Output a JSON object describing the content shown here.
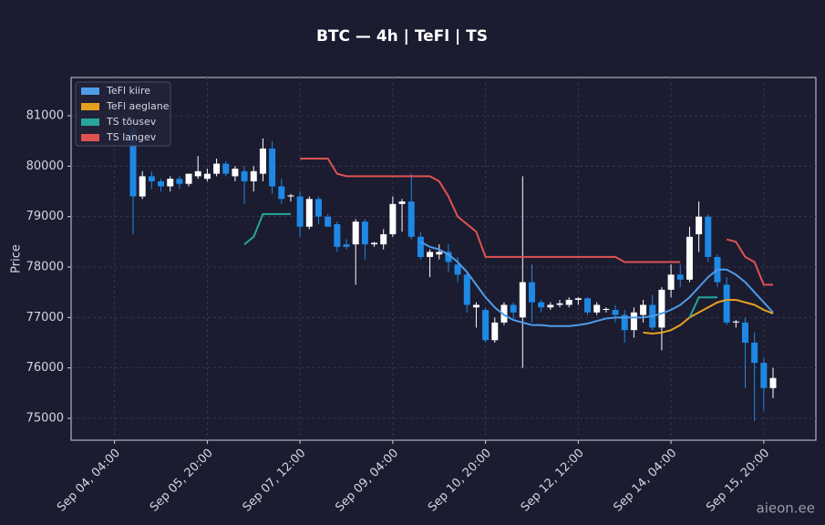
{
  "chart_data": {
    "type": "candlestick",
    "title": "BTC — 4h  |  TeFl  |  TS",
    "y_label": "Price",
    "watermark": "aieon.ee",
    "x": [
      "Sep 04, 12:00",
      "Sep 04, 16:00",
      "Sep 04, 20:00",
      "Sep 05, 00:00",
      "Sep 05, 04:00",
      "Sep 05, 08:00",
      "Sep 05, 12:00",
      "Sep 05, 16:00",
      "Sep 05, 20:00",
      "Sep 06, 00:00",
      "Sep 06, 04:00",
      "Sep 06, 08:00",
      "Sep 06, 12:00",
      "Sep 06, 16:00",
      "Sep 06, 20:00",
      "Sep 07, 00:00",
      "Sep 07, 04:00",
      "Sep 07, 08:00",
      "Sep 07, 12:00",
      "Sep 07, 16:00",
      "Sep 07, 20:00",
      "Sep 08, 00:00",
      "Sep 08, 04:00",
      "Sep 08, 08:00",
      "Sep 08, 12:00",
      "Sep 08, 16:00",
      "Sep 08, 20:00",
      "Sep 09, 00:00",
      "Sep 09, 04:00",
      "Sep 09, 08:00",
      "Sep 09, 12:00",
      "Sep 09, 16:00",
      "Sep 09, 20:00",
      "Sep 10, 00:00",
      "Sep 10, 04:00",
      "Sep 10, 08:00",
      "Sep 10, 12:00",
      "Sep 10, 16:00",
      "Sep 10, 20:00",
      "Sep 11, 00:00",
      "Sep 11, 04:00",
      "Sep 11, 08:00",
      "Sep 11, 12:00",
      "Sep 11, 16:00",
      "Sep 11, 20:00",
      "Sep 12, 00:00",
      "Sep 12, 04:00",
      "Sep 12, 08:00",
      "Sep 12, 12:00",
      "Sep 12, 16:00",
      "Sep 12, 20:00",
      "Sep 13, 00:00",
      "Sep 13, 04:00",
      "Sep 13, 08:00",
      "Sep 13, 12:00",
      "Sep 13, 16:00",
      "Sep 13, 20:00",
      "Sep 14, 00:00",
      "Sep 14, 04:00",
      "Sep 14, 08:00",
      "Sep 14, 12:00",
      "Sep 14, 16:00",
      "Sep 14, 20:00",
      "Sep 15, 00:00",
      "Sep 15, 04:00",
      "Sep 15, 08:00",
      "Sep 15, 12:00",
      "Sep 15, 16:00",
      "Sep 15, 20:00",
      "Sep 16, 00:00"
    ],
    "open": [
      80750,
      79400,
      79800,
      79700,
      79600,
      79750,
      79650,
      79800,
      79750,
      79850,
      80050,
      79800,
      79900,
      79700,
      79850,
      80350,
      79600,
      79400,
      79400,
      78800,
      79350,
      79000,
      78850,
      78450,
      78450,
      78900,
      78450,
      78450,
      78650,
      79250,
      79300,
      78600,
      78200,
      78250,
      78300,
      78050,
      77850,
      77200,
      77150,
      76550,
      76900,
      77250,
      77000,
      77700,
      77300,
      77200,
      77250,
      77250,
      77350,
      77380,
      77100,
      77150,
      77150,
      77050,
      76750,
      77050,
      77250,
      76800,
      77550,
      77850,
      77750,
      78650,
      79000,
      78200,
      77650,
      76900,
      76900,
      76500,
      76100,
      75600
    ],
    "high": [
      80950,
      79900,
      79900,
      79750,
      79800,
      79800,
      79850,
      80200,
      79950,
      80150,
      80100,
      80000,
      80000,
      80000,
      80550,
      80500,
      79750,
      79450,
      79500,
      79400,
      79400,
      79050,
      78900,
      78550,
      78950,
      78950,
      78500,
      78750,
      79400,
      79350,
      79850,
      78700,
      78350,
      78450,
      78450,
      78200,
      77900,
      77300,
      77200,
      77000,
      77300,
      77300,
      79800,
      78050,
      77350,
      77300,
      77350,
      77400,
      77400,
      77400,
      77300,
      77200,
      77250,
      77150,
      77200,
      77350,
      77450,
      77600,
      78050,
      78050,
      78800,
      79300,
      79050,
      78250,
      77800,
      76950,
      77000,
      76700,
      76200,
      76000
    ],
    "low": [
      78650,
      79350,
      79550,
      79500,
      79500,
      79550,
      79600,
      79750,
      79700,
      79800,
      79800,
      79700,
      79250,
      79500,
      79700,
      79450,
      79250,
      79300,
      78600,
      78750,
      78850,
      78800,
      78300,
      78350,
      77650,
      78150,
      78400,
      78350,
      78600,
      78700,
      78550,
      78150,
      77800,
      78150,
      77900,
      77700,
      77100,
      76800,
      76500,
      76500,
      76850,
      76950,
      76000,
      76900,
      77100,
      77150,
      77200,
      77200,
      77250,
      77050,
      77050,
      77100,
      76900,
      76500,
      76600,
      76900,
      76750,
      76350,
      77400,
      77600,
      77700,
      78300,
      78100,
      77600,
      76850,
      76800,
      75600,
      74950,
      75150,
      75400
    ],
    "close": [
      79400,
      79800,
      79700,
      79600,
      79750,
      79650,
      79850,
      79900,
      79850,
      80050,
      79850,
      79950,
      79700,
      79900,
      80350,
      79600,
      79350,
      79420,
      78800,
      79350,
      79000,
      78800,
      78400,
      78400,
      78900,
      78450,
      78480,
      78650,
      79250,
      79300,
      78600,
      78200,
      78300,
      78300,
      78100,
      77850,
      77250,
      77250,
      76550,
      76900,
      77250,
      77100,
      77700,
      77300,
      77200,
      77250,
      77280,
      77350,
      77380,
      77100,
      77250,
      77170,
      77050,
      76750,
      77100,
      77250,
      76800,
      77550,
      77850,
      77750,
      78600,
      79000,
      78200,
      77700,
      76900,
      76920,
      76500,
      76100,
      75600,
      75800
    ],
    "up_color": "#ffffff",
    "down_color": "#1e88e5",
    "series": [
      {
        "name": "TeFl kiire",
        "color": "#4f9be8",
        "values": [
          null,
          null,
          null,
          null,
          null,
          null,
          null,
          null,
          null,
          null,
          null,
          null,
          null,
          null,
          null,
          null,
          null,
          null,
          null,
          null,
          null,
          null,
          null,
          null,
          null,
          null,
          null,
          null,
          null,
          null,
          null,
          78500,
          78400,
          78350,
          78250,
          78100,
          77900,
          77650,
          77400,
          77200,
          77050,
          76950,
          76900,
          76850,
          76850,
          76830,
          76830,
          76830,
          76850,
          76880,
          76930,
          76980,
          77000,
          77000,
          77000,
          77000,
          77030,
          77080,
          77150,
          77250,
          77400,
          77600,
          77800,
          77950,
          77950,
          77850,
          77700,
          77500,
          77300,
          77100
        ]
      },
      {
        "name": "TeFl aeglane",
        "color": "#e6a11c",
        "values": [
          null,
          null,
          null,
          null,
          null,
          null,
          null,
          null,
          null,
          null,
          null,
          null,
          null,
          null,
          null,
          null,
          null,
          null,
          null,
          null,
          null,
          null,
          null,
          null,
          null,
          null,
          null,
          null,
          null,
          null,
          null,
          null,
          null,
          null,
          null,
          null,
          null,
          null,
          null,
          null,
          null,
          null,
          null,
          null,
          null,
          null,
          null,
          null,
          null,
          null,
          null,
          null,
          null,
          null,
          null,
          76700,
          76680,
          76700,
          76750,
          76850,
          77000,
          77100,
          77200,
          77300,
          77350,
          77350,
          77300,
          77250,
          77150,
          77080
        ]
      },
      {
        "name": "TS tõusev",
        "color": "#26a69a",
        "values": [
          null,
          null,
          null,
          null,
          null,
          null,
          null,
          null,
          null,
          null,
          null,
          null,
          78450,
          78600,
          79050,
          79050,
          79050,
          79050,
          null,
          null,
          null,
          null,
          null,
          null,
          null,
          null,
          null,
          null,
          null,
          null,
          null,
          null,
          null,
          null,
          null,
          null,
          null,
          null,
          null,
          null,
          null,
          null,
          null,
          null,
          null,
          null,
          null,
          null,
          null,
          null,
          null,
          null,
          null,
          null,
          null,
          null,
          null,
          null,
          null,
          null,
          77000,
          77400,
          77400,
          77400,
          null,
          null,
          null,
          null,
          null,
          null
        ]
      },
      {
        "name": "TS langev",
        "color": "#e05252",
        "values": [
          null,
          null,
          null,
          null,
          null,
          null,
          null,
          null,
          null,
          null,
          null,
          null,
          null,
          null,
          null,
          null,
          null,
          null,
          80150,
          80150,
          80150,
          80150,
          79850,
          79800,
          79800,
          79800,
          79800,
          79800,
          79800,
          79800,
          79800,
          79800,
          79800,
          79700,
          79400,
          79000,
          78850,
          78700,
          78200,
          78200,
          78200,
          78200,
          78200,
          78200,
          78200,
          78200,
          78200,
          78200,
          78200,
          78200,
          78200,
          78200,
          78200,
          78100,
          78100,
          78100,
          78100,
          78100,
          78100,
          78100,
          null,
          null,
          null,
          null,
          78550,
          78500,
          78200,
          78100,
          77650,
          77650
        ]
      }
    ],
    "xticks": [
      "Sep 04, 04:00",
      "Sep 05, 20:00",
      "Sep 07, 12:00",
      "Sep 09, 04:00",
      "Sep 10, 20:00",
      "Sep 12, 12:00",
      "Sep 14, 04:00",
      "Sep 15, 20:00"
    ],
    "ylim": [
      74566,
      81759
    ],
    "yticks": [
      75000,
      76000,
      77000,
      78000,
      79000,
      80000,
      81000
    ],
    "grid": true,
    "legend": "upper-left"
  }
}
